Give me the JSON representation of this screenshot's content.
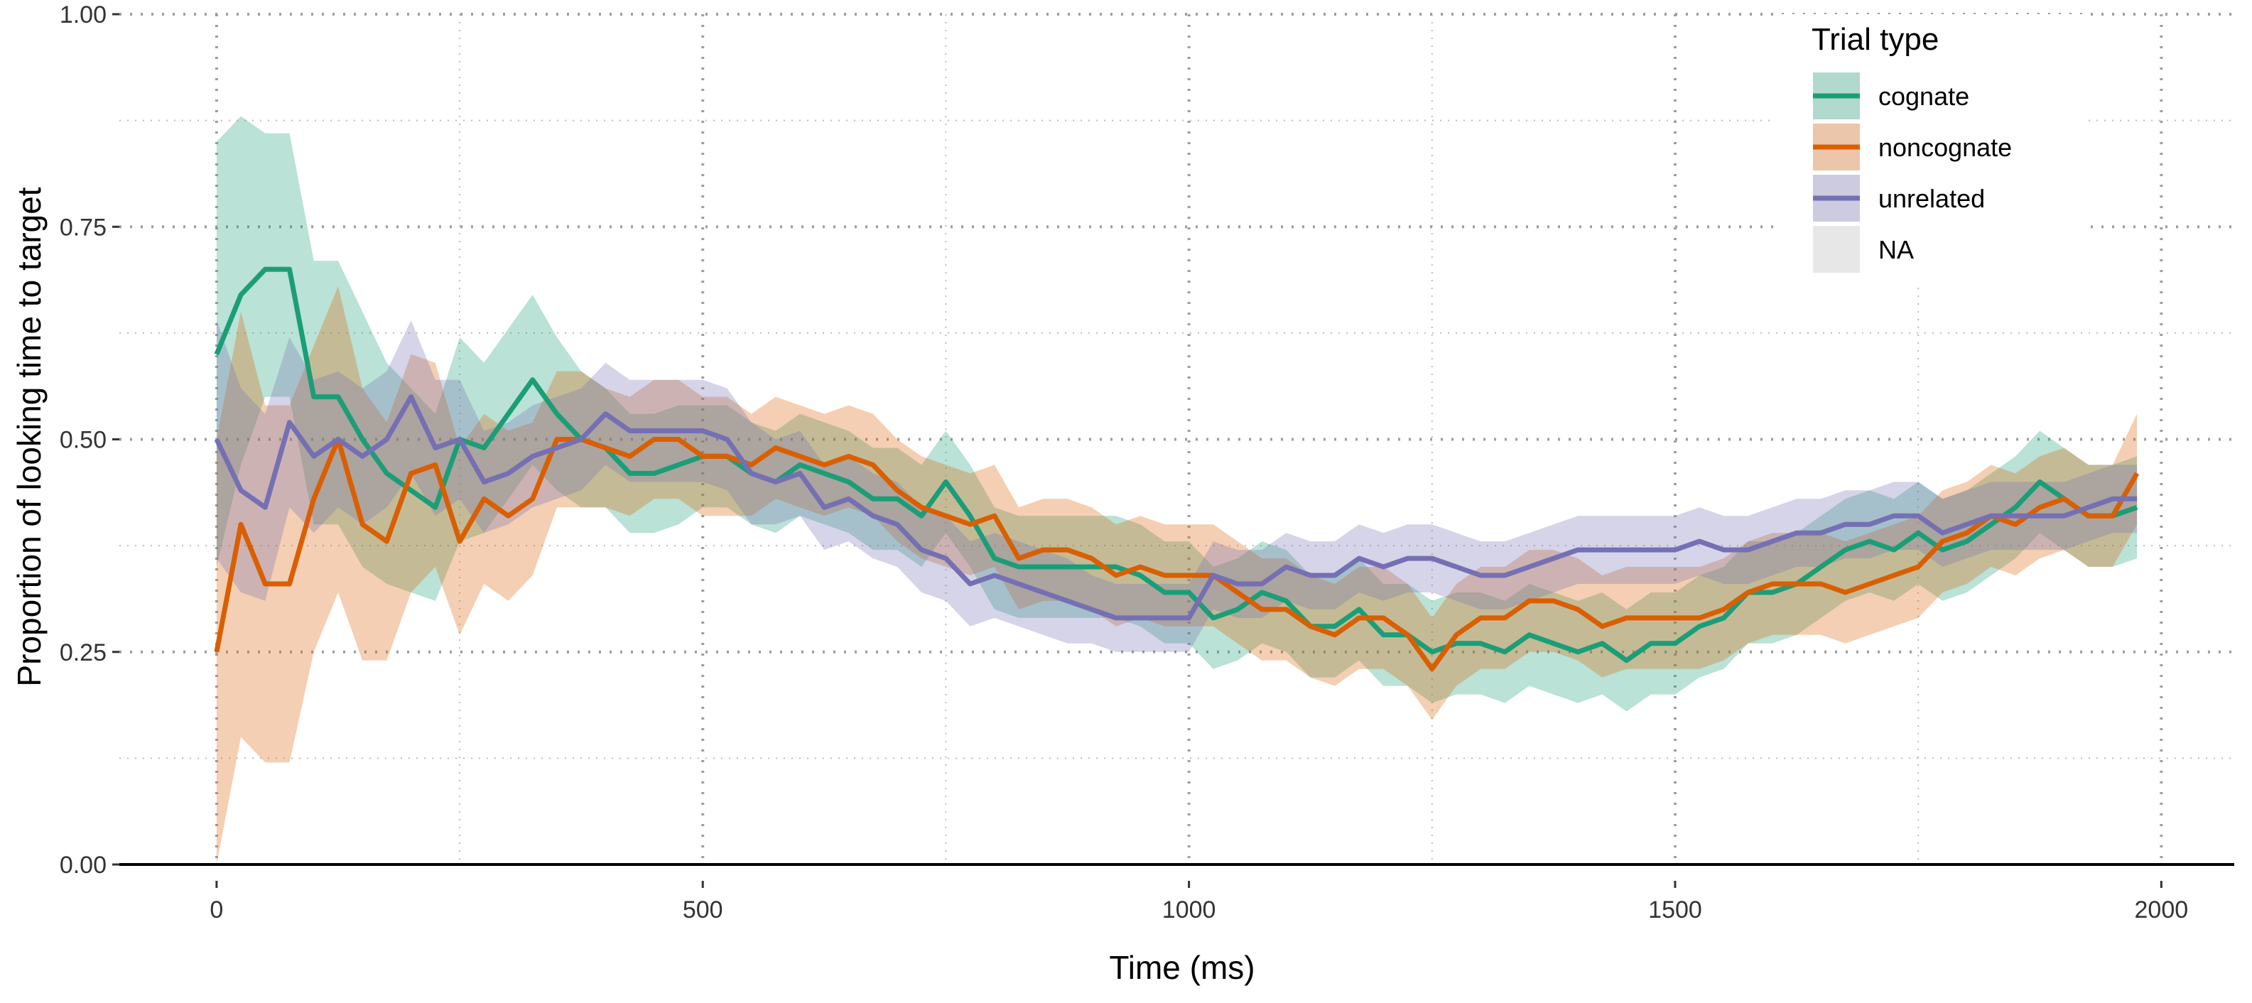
{
  "chart_data": {
    "type": "line",
    "xlabel": "Time (ms)",
    "ylabel": "Proportion of looking time to target",
    "xlim": [
      -100,
      2075
    ],
    "ylim": [
      0,
      1.0
    ],
    "xticks": [
      0,
      500,
      1000,
      1500,
      2000
    ],
    "xtick_labels": [
      "0",
      "500",
      "1000",
      "1500",
      "2000"
    ],
    "yticks": [
      0,
      0.25,
      0.5,
      0.75,
      1.0
    ],
    "ytick_labels": [
      "0.00",
      "0.25",
      "0.50",
      "0.75",
      "1.00"
    ],
    "grid": true,
    "legend": {
      "title": "Trial type",
      "position": "top-right",
      "entries": [
        "cognate",
        "noncognate",
        "unrelated",
        "NA"
      ]
    },
    "x": [
      0,
      25,
      50,
      75,
      100,
      125,
      150,
      175,
      200,
      225,
      250,
      275,
      300,
      325,
      350,
      375,
      400,
      425,
      450,
      475,
      500,
      525,
      550,
      575,
      600,
      625,
      650,
      675,
      700,
      725,
      750,
      775,
      800,
      825,
      850,
      875,
      900,
      925,
      950,
      975,
      1000,
      1025,
      1050,
      1075,
      1100,
      1125,
      1150,
      1175,
      1200,
      1225,
      1250,
      1275,
      1300,
      1325,
      1350,
      1375,
      1400,
      1425,
      1450,
      1475,
      1500,
      1525,
      1550,
      1575,
      1600,
      1625,
      1650,
      1675,
      1700,
      1725,
      1750,
      1775,
      1800,
      1825,
      1850,
      1875,
      1900,
      1925,
      1950,
      1975
    ],
    "series": [
      {
        "name": "cognate",
        "color": "#1b9e77",
        "y": [
          0.6,
          0.67,
          0.7,
          0.7,
          0.55,
          0.55,
          0.5,
          0.46,
          0.44,
          0.42,
          0.5,
          0.49,
          0.53,
          0.57,
          0.53,
          0.5,
          0.49,
          0.46,
          0.46,
          0.47,
          0.48,
          0.48,
          0.46,
          0.45,
          0.47,
          0.46,
          0.45,
          0.43,
          0.43,
          0.41,
          0.45,
          0.41,
          0.36,
          0.35,
          0.35,
          0.35,
          0.35,
          0.35,
          0.34,
          0.32,
          0.32,
          0.29,
          0.3,
          0.32,
          0.31,
          0.28,
          0.28,
          0.3,
          0.27,
          0.27,
          0.25,
          0.26,
          0.26,
          0.25,
          0.27,
          0.26,
          0.25,
          0.26,
          0.24,
          0.26,
          0.26,
          0.28,
          0.29,
          0.32,
          0.32,
          0.33,
          0.35,
          0.37,
          0.38,
          0.37,
          0.39,
          0.37,
          0.38,
          0.4,
          0.42,
          0.45,
          0.43,
          0.41,
          0.41,
          0.42
        ],
        "lower": [
          0.35,
          0.47,
          0.55,
          0.55,
          0.4,
          0.4,
          0.35,
          0.33,
          0.32,
          0.31,
          0.38,
          0.39,
          0.43,
          0.47,
          0.44,
          0.42,
          0.42,
          0.39,
          0.39,
          0.4,
          0.42,
          0.42,
          0.4,
          0.39,
          0.41,
          0.4,
          0.39,
          0.37,
          0.37,
          0.35,
          0.39,
          0.35,
          0.3,
          0.29,
          0.29,
          0.29,
          0.29,
          0.29,
          0.28,
          0.26,
          0.26,
          0.23,
          0.24,
          0.26,
          0.25,
          0.22,
          0.22,
          0.24,
          0.21,
          0.21,
          0.19,
          0.2,
          0.2,
          0.19,
          0.21,
          0.2,
          0.19,
          0.2,
          0.18,
          0.2,
          0.2,
          0.22,
          0.23,
          0.26,
          0.26,
          0.27,
          0.29,
          0.31,
          0.32,
          0.31,
          0.33,
          0.31,
          0.32,
          0.34,
          0.36,
          0.39,
          0.37,
          0.35,
          0.35,
          0.36
        ],
        "upper": [
          0.85,
          0.88,
          0.86,
          0.86,
          0.71,
          0.71,
          0.65,
          0.59,
          0.56,
          0.53,
          0.62,
          0.59,
          0.63,
          0.67,
          0.62,
          0.58,
          0.56,
          0.53,
          0.53,
          0.54,
          0.54,
          0.54,
          0.52,
          0.51,
          0.53,
          0.52,
          0.51,
          0.49,
          0.49,
          0.47,
          0.51,
          0.47,
          0.42,
          0.41,
          0.41,
          0.41,
          0.41,
          0.41,
          0.4,
          0.38,
          0.38,
          0.35,
          0.36,
          0.38,
          0.37,
          0.34,
          0.34,
          0.36,
          0.33,
          0.33,
          0.31,
          0.32,
          0.32,
          0.31,
          0.33,
          0.32,
          0.31,
          0.32,
          0.3,
          0.32,
          0.32,
          0.34,
          0.35,
          0.38,
          0.38,
          0.39,
          0.41,
          0.43,
          0.44,
          0.43,
          0.45,
          0.43,
          0.44,
          0.46,
          0.48,
          0.51,
          0.49,
          0.47,
          0.47,
          0.48
        ]
      },
      {
        "name": "noncognate",
        "color": "#d95f02",
        "y": [
          0.25,
          0.4,
          0.33,
          0.33,
          0.43,
          0.5,
          0.4,
          0.38,
          0.46,
          0.47,
          0.38,
          0.43,
          0.41,
          0.43,
          0.5,
          0.5,
          0.49,
          0.48,
          0.5,
          0.5,
          0.48,
          0.48,
          0.47,
          0.49,
          0.48,
          0.47,
          0.48,
          0.47,
          0.44,
          0.42,
          0.41,
          0.4,
          0.41,
          0.36,
          0.37,
          0.37,
          0.36,
          0.34,
          0.35,
          0.34,
          0.34,
          0.34,
          0.32,
          0.3,
          0.3,
          0.28,
          0.27,
          0.29,
          0.29,
          0.27,
          0.23,
          0.27,
          0.29,
          0.29,
          0.31,
          0.31,
          0.3,
          0.28,
          0.29,
          0.29,
          0.29,
          0.29,
          0.3,
          0.32,
          0.33,
          0.33,
          0.33,
          0.32,
          0.33,
          0.34,
          0.35,
          0.38,
          0.39,
          0.41,
          0.4,
          0.42,
          0.43,
          0.41,
          0.41,
          0.46
        ],
        "lower": [
          0.0,
          0.15,
          0.12,
          0.12,
          0.25,
          0.32,
          0.24,
          0.24,
          0.32,
          0.35,
          0.27,
          0.33,
          0.31,
          0.34,
          0.42,
          0.42,
          0.42,
          0.41,
          0.43,
          0.43,
          0.41,
          0.41,
          0.41,
          0.43,
          0.42,
          0.41,
          0.42,
          0.41,
          0.38,
          0.36,
          0.35,
          0.34,
          0.35,
          0.3,
          0.31,
          0.31,
          0.3,
          0.28,
          0.29,
          0.28,
          0.28,
          0.28,
          0.26,
          0.24,
          0.24,
          0.22,
          0.21,
          0.23,
          0.23,
          0.21,
          0.17,
          0.21,
          0.23,
          0.23,
          0.25,
          0.25,
          0.24,
          0.22,
          0.23,
          0.23,
          0.23,
          0.23,
          0.24,
          0.26,
          0.27,
          0.27,
          0.27,
          0.26,
          0.27,
          0.28,
          0.29,
          0.32,
          0.33,
          0.35,
          0.34,
          0.36,
          0.37,
          0.35,
          0.35,
          0.4
        ],
        "upper": [
          0.5,
          0.65,
          0.54,
          0.54,
          0.61,
          0.68,
          0.56,
          0.52,
          0.6,
          0.59,
          0.49,
          0.53,
          0.51,
          0.52,
          0.58,
          0.58,
          0.56,
          0.55,
          0.57,
          0.57,
          0.55,
          0.55,
          0.53,
          0.55,
          0.54,
          0.53,
          0.54,
          0.53,
          0.5,
          0.48,
          0.47,
          0.46,
          0.47,
          0.42,
          0.43,
          0.43,
          0.42,
          0.4,
          0.41,
          0.4,
          0.4,
          0.4,
          0.38,
          0.36,
          0.36,
          0.34,
          0.33,
          0.35,
          0.35,
          0.33,
          0.29,
          0.33,
          0.35,
          0.35,
          0.37,
          0.37,
          0.36,
          0.34,
          0.35,
          0.35,
          0.35,
          0.35,
          0.36,
          0.38,
          0.39,
          0.39,
          0.39,
          0.38,
          0.39,
          0.4,
          0.41,
          0.44,
          0.45,
          0.47,
          0.46,
          0.48,
          0.49,
          0.47,
          0.47,
          0.53
        ]
      },
      {
        "name": "unrelated",
        "color": "#7570b3",
        "y": [
          0.5,
          0.44,
          0.42,
          0.52,
          0.48,
          0.5,
          0.48,
          0.5,
          0.55,
          0.49,
          0.5,
          0.45,
          0.46,
          0.48,
          0.49,
          0.5,
          0.53,
          0.51,
          0.51,
          0.51,
          0.51,
          0.5,
          0.46,
          0.45,
          0.46,
          0.42,
          0.43,
          0.41,
          0.4,
          0.37,
          0.36,
          0.33,
          0.34,
          0.33,
          0.32,
          0.31,
          0.3,
          0.29,
          0.29,
          0.29,
          0.29,
          0.34,
          0.33,
          0.33,
          0.35,
          0.34,
          0.34,
          0.36,
          0.35,
          0.36,
          0.36,
          0.35,
          0.34,
          0.34,
          0.35,
          0.36,
          0.37,
          0.37,
          0.37,
          0.37,
          0.37,
          0.38,
          0.37,
          0.37,
          0.38,
          0.39,
          0.39,
          0.4,
          0.4,
          0.41,
          0.41,
          0.39,
          0.4,
          0.41,
          0.41,
          0.41,
          0.41,
          0.42,
          0.43,
          0.43
        ],
        "lower": [
          0.36,
          0.32,
          0.31,
          0.42,
          0.39,
          0.42,
          0.4,
          0.42,
          0.46,
          0.41,
          0.43,
          0.39,
          0.4,
          0.42,
          0.43,
          0.44,
          0.47,
          0.45,
          0.45,
          0.45,
          0.45,
          0.44,
          0.4,
          0.4,
          0.41,
          0.37,
          0.38,
          0.36,
          0.35,
          0.32,
          0.31,
          0.28,
          0.29,
          0.28,
          0.27,
          0.26,
          0.26,
          0.25,
          0.25,
          0.25,
          0.25,
          0.3,
          0.29,
          0.29,
          0.31,
          0.3,
          0.3,
          0.32,
          0.31,
          0.32,
          0.32,
          0.31,
          0.3,
          0.3,
          0.31,
          0.32,
          0.33,
          0.33,
          0.33,
          0.33,
          0.33,
          0.34,
          0.33,
          0.33,
          0.34,
          0.35,
          0.35,
          0.36,
          0.36,
          0.37,
          0.37,
          0.35,
          0.36,
          0.37,
          0.37,
          0.37,
          0.37,
          0.38,
          0.39,
          0.39
        ],
        "upper": [
          0.64,
          0.56,
          0.53,
          0.62,
          0.57,
          0.58,
          0.56,
          0.58,
          0.64,
          0.57,
          0.57,
          0.51,
          0.52,
          0.54,
          0.55,
          0.56,
          0.59,
          0.57,
          0.57,
          0.57,
          0.57,
          0.56,
          0.52,
          0.5,
          0.51,
          0.47,
          0.48,
          0.46,
          0.45,
          0.42,
          0.41,
          0.38,
          0.39,
          0.38,
          0.37,
          0.36,
          0.34,
          0.33,
          0.33,
          0.33,
          0.33,
          0.38,
          0.37,
          0.37,
          0.39,
          0.38,
          0.38,
          0.4,
          0.39,
          0.4,
          0.4,
          0.39,
          0.38,
          0.38,
          0.39,
          0.4,
          0.41,
          0.41,
          0.41,
          0.41,
          0.41,
          0.42,
          0.41,
          0.41,
          0.42,
          0.43,
          0.43,
          0.44,
          0.44,
          0.45,
          0.45,
          0.43,
          0.44,
          0.45,
          0.45,
          0.45,
          0.45,
          0.46,
          0.47,
          0.47
        ]
      }
    ],
    "na_color": "#d9d9d9"
  }
}
